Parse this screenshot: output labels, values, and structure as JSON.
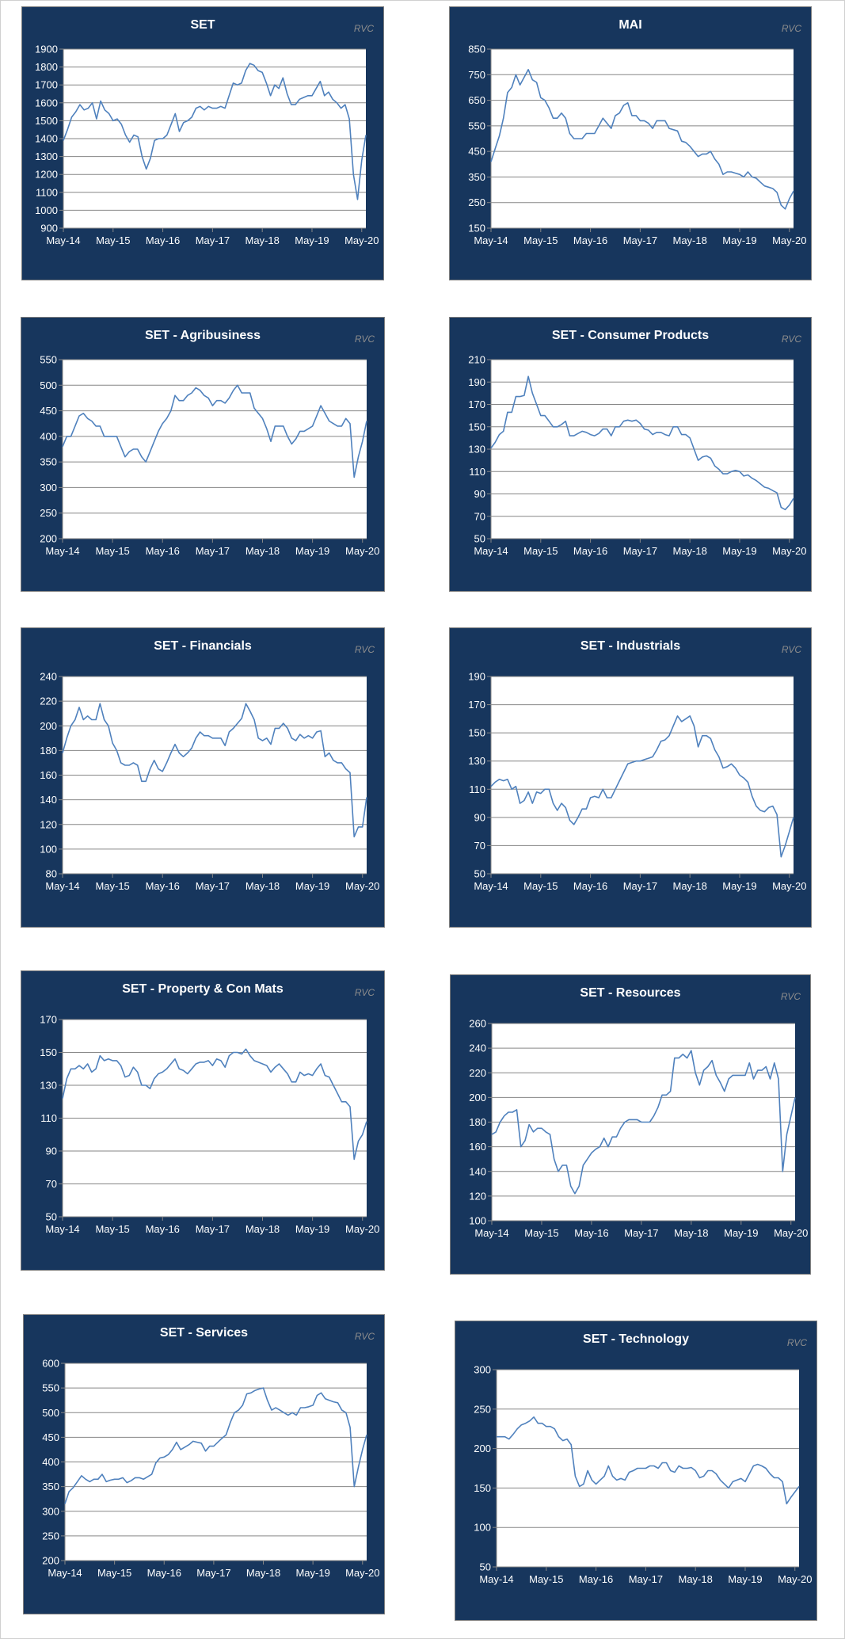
{
  "colors": {
    "panel": "#17365d",
    "line": "#4f81bd",
    "grid": "#868686",
    "brand": "#8c8c8c"
  },
  "chart_data": [
    {
      "type": "line",
      "title": "SET",
      "brand": "RVC",
      "x_start": "May-14",
      "x_step": "1 month",
      "xlim_months": [
        0,
        73
      ],
      "x_tick_labels": [
        "May-14",
        "May-15",
        "May-16",
        "May-17",
        "May-18",
        "May-19",
        "May-20"
      ],
      "ylim": [
        900,
        1900
      ],
      "yticks": [
        900,
        1000,
        1100,
        1200,
        1300,
        1400,
        1500,
        1600,
        1700,
        1800,
        1900
      ],
      "values": [
        1390,
        1450,
        1520,
        1550,
        1590,
        1560,
        1570,
        1600,
        1510,
        1610,
        1560,
        1540,
        1500,
        1510,
        1480,
        1420,
        1380,
        1420,
        1410,
        1300,
        1230,
        1290,
        1390,
        1400,
        1400,
        1420,
        1480,
        1540,
        1440,
        1490,
        1500,
        1520,
        1570,
        1580,
        1560,
        1580,
        1570,
        1570,
        1580,
        1570,
        1640,
        1710,
        1700,
        1710,
        1780,
        1820,
        1810,
        1780,
        1770,
        1710,
        1640,
        1700,
        1680,
        1740,
        1650,
        1590,
        1590,
        1620,
        1630,
        1640,
        1640,
        1680,
        1720,
        1640,
        1660,
        1620,
        1600,
        1570,
        1590,
        1510,
        1200,
        1060,
        1280,
        1420
      ]
    },
    {
      "type": "line",
      "title": "MAI",
      "brand": "RVC",
      "x_start": "May-14",
      "x_step": "1 month",
      "xlim_months": [
        0,
        73
      ],
      "x_tick_labels": [
        "May-14",
        "May-15",
        "May-16",
        "May-17",
        "May-18",
        "May-19",
        "May-20"
      ],
      "ylim": [
        150,
        850
      ],
      "yticks": [
        150,
        250,
        350,
        450,
        550,
        650,
        750,
        850
      ],
      "values": [
        410,
        460,
        510,
        580,
        680,
        700,
        750,
        710,
        740,
        770,
        730,
        720,
        660,
        650,
        620,
        580,
        580,
        600,
        580,
        520,
        500,
        500,
        500,
        520,
        520,
        520,
        550,
        580,
        560,
        540,
        590,
        600,
        630,
        640,
        590,
        590,
        570,
        570,
        560,
        540,
        570,
        570,
        570,
        540,
        535,
        530,
        490,
        485,
        470,
        450,
        430,
        440,
        440,
        450,
        420,
        400,
        360,
        370,
        370,
        365,
        360,
        350,
        370,
        350,
        345,
        330,
        315,
        310,
        305,
        290,
        240,
        225,
        265,
        295
      ]
    },
    {
      "type": "line",
      "title": "SET - Agribusiness",
      "brand": "RVC",
      "x_start": "May-14",
      "x_step": "1 month",
      "xlim_months": [
        0,
        73
      ],
      "x_tick_labels": [
        "May-14",
        "May-15",
        "May-16",
        "May-17",
        "May-18",
        "May-19",
        "May-20"
      ],
      "ylim": [
        200,
        550
      ],
      "yticks": [
        200,
        250,
        300,
        350,
        400,
        450,
        500,
        550
      ],
      "values": [
        380,
        400,
        400,
        420,
        440,
        445,
        435,
        430,
        420,
        420,
        400,
        400,
        400,
        400,
        380,
        360,
        370,
        375,
        375,
        360,
        350,
        370,
        390,
        410,
        425,
        435,
        450,
        480,
        470,
        470,
        480,
        485,
        495,
        490,
        480,
        475,
        460,
        470,
        470,
        465,
        475,
        490,
        500,
        485,
        485,
        485,
        455,
        445,
        435,
        415,
        390,
        420,
        420,
        420,
        400,
        385,
        395,
        410,
        410,
        415,
        420,
        440,
        460,
        445,
        430,
        425,
        420,
        420,
        435,
        425,
        320,
        360,
        390,
        430
      ]
    },
    {
      "type": "line",
      "title": "SET - Consumer Products",
      "brand": "RVC",
      "x_start": "May-14",
      "x_step": "1 month",
      "xlim_months": [
        0,
        73
      ],
      "x_tick_labels": [
        "May-14",
        "May-15",
        "May-16",
        "May-17",
        "May-18",
        "May-19",
        "May-20"
      ],
      "ylim": [
        50,
        210
      ],
      "yticks": [
        50,
        70,
        90,
        110,
        130,
        150,
        170,
        190,
        210
      ],
      "values": [
        131,
        136,
        143,
        146,
        163,
        163,
        177,
        177,
        178,
        195,
        180,
        170,
        160,
        160,
        155,
        150,
        150,
        152,
        155,
        142,
        142,
        144,
        146,
        145,
        143,
        142,
        144,
        148,
        148,
        142,
        150,
        150,
        155,
        156,
        155,
        156,
        153,
        148,
        147,
        143,
        145,
        145,
        143,
        142,
        150,
        150,
        143,
        143,
        140,
        130,
        120,
        123,
        124,
        122,
        115,
        112,
        108,
        108,
        110,
        111,
        110,
        106,
        107,
        104,
        102,
        99,
        96,
        95,
        93,
        91,
        78,
        76,
        80,
        86
      ]
    },
    {
      "type": "line",
      "title": "SET - Financials",
      "brand": "RVC",
      "x_start": "May-14",
      "x_step": "1 month",
      "xlim_months": [
        0,
        73
      ],
      "x_tick_labels": [
        "May-14",
        "May-15",
        "May-16",
        "May-17",
        "May-18",
        "May-19",
        "May-20"
      ],
      "ylim": [
        80,
        240
      ],
      "yticks": [
        80,
        100,
        120,
        140,
        160,
        180,
        200,
        220,
        240
      ],
      "values": [
        178,
        190,
        200,
        205,
        215,
        205,
        208,
        205,
        205,
        218,
        205,
        200,
        186,
        180,
        170,
        168,
        168,
        170,
        168,
        155,
        155,
        165,
        172,
        165,
        163,
        170,
        178,
        185,
        178,
        175,
        178,
        182,
        190,
        195,
        192,
        192,
        190,
        190,
        190,
        184,
        195,
        198,
        202,
        206,
        218,
        212,
        205,
        190,
        188,
        190,
        185,
        198,
        198,
        202,
        198,
        190,
        188,
        193,
        190,
        192,
        190,
        195,
        196,
        175,
        178,
        172,
        170,
        170,
        165,
        162,
        110,
        118,
        118,
        142
      ]
    },
    {
      "type": "line",
      "title": "SET - Industrials",
      "brand": "RVC",
      "x_start": "May-14",
      "x_step": "1 month",
      "xlim_months": [
        0,
        73
      ],
      "x_tick_labels": [
        "May-14",
        "May-15",
        "May-16",
        "May-17",
        "May-18",
        "May-19",
        "May-20"
      ],
      "ylim": [
        50,
        190
      ],
      "yticks": [
        50,
        70,
        90,
        110,
        130,
        150,
        170,
        190
      ],
      "values": [
        112,
        115,
        117,
        116,
        117,
        110,
        112,
        100,
        102,
        108,
        100,
        108,
        107,
        110,
        110,
        100,
        95,
        100,
        97,
        88,
        85,
        90,
        96,
        96,
        104,
        105,
        104,
        110,
        104,
        104,
        110,
        116,
        122,
        128,
        129,
        130,
        130,
        131,
        132,
        133,
        138,
        144,
        145,
        148,
        155,
        162,
        158,
        160,
        162,
        155,
        140,
        148,
        148,
        146,
        138,
        133,
        125,
        126,
        128,
        125,
        120,
        118,
        115,
        105,
        98,
        95,
        94,
        97,
        98,
        92,
        62,
        70,
        80,
        90
      ]
    },
    {
      "type": "line",
      "title": "SET - Property & Con Mats",
      "brand": "RVC",
      "x_start": "May-14",
      "x_step": "1 month",
      "xlim_months": [
        0,
        73
      ],
      "x_tick_labels": [
        "May-14",
        "May-15",
        "May-16",
        "May-17",
        "May-18",
        "May-19",
        "May-20"
      ],
      "ylim": [
        50,
        170
      ],
      "yticks": [
        50,
        70,
        90,
        110,
        130,
        150,
        170
      ],
      "values": [
        122,
        134,
        140,
        140,
        142,
        140,
        143,
        138,
        140,
        148,
        145,
        146,
        145,
        145,
        142,
        135,
        136,
        141,
        138,
        130,
        130,
        128,
        134,
        137,
        138,
        140,
        143,
        146,
        140,
        139,
        137,
        140,
        143,
        144,
        144,
        145,
        142,
        146,
        145,
        141,
        148,
        150,
        150,
        149,
        152,
        148,
        145,
        144,
        143,
        142,
        138,
        141,
        143,
        140,
        137,
        132,
        132,
        138,
        136,
        137,
        136,
        140,
        143,
        136,
        135,
        130,
        125,
        120,
        120,
        117,
        85,
        96,
        100,
        108
      ]
    },
    {
      "type": "line",
      "title": "SET - Resources",
      "brand": "RVC",
      "x_start": "May-14",
      "x_step": "1 month",
      "xlim_months": [
        0,
        73
      ],
      "x_tick_labels": [
        "May-14",
        "May-15",
        "May-16",
        "May-17",
        "May-18",
        "May-19",
        "May-20"
      ],
      "ylim": [
        100,
        260
      ],
      "yticks": [
        100,
        120,
        140,
        160,
        180,
        200,
        220,
        240,
        260
      ],
      "values": [
        170,
        172,
        180,
        185,
        188,
        188,
        190,
        160,
        165,
        178,
        172,
        175,
        175,
        172,
        170,
        150,
        140,
        145,
        145,
        128,
        122,
        128,
        145,
        150,
        155,
        158,
        160,
        167,
        160,
        168,
        168,
        175,
        180,
        182,
        182,
        182,
        180,
        180,
        180,
        185,
        192,
        202,
        202,
        205,
        232,
        232,
        235,
        232,
        238,
        220,
        210,
        222,
        225,
        230,
        218,
        212,
        205,
        215,
        218,
        218,
        218,
        218,
        228,
        215,
        222,
        222,
        225,
        215,
        228,
        215,
        140,
        170,
        185,
        200
      ]
    },
    {
      "type": "line",
      "title": "SET - Services",
      "brand": "RVC",
      "x_start": "May-14",
      "x_step": "1 month",
      "xlim_months": [
        0,
        73
      ],
      "x_tick_labels": [
        "May-14",
        "May-15",
        "May-16",
        "May-17",
        "May-18",
        "May-19",
        "May-20"
      ],
      "ylim": [
        200,
        600
      ],
      "yticks": [
        200,
        250,
        300,
        350,
        400,
        450,
        500,
        550,
        600
      ],
      "values": [
        315,
        340,
        348,
        360,
        372,
        365,
        360,
        365,
        365,
        375,
        360,
        363,
        365,
        365,
        368,
        358,
        362,
        368,
        368,
        365,
        370,
        375,
        398,
        408,
        410,
        415,
        425,
        440,
        425,
        430,
        435,
        442,
        440,
        438,
        422,
        432,
        432,
        440,
        448,
        455,
        480,
        500,
        505,
        515,
        538,
        540,
        545,
        548,
        550,
        525,
        505,
        510,
        505,
        500,
        495,
        500,
        495,
        510,
        510,
        512,
        515,
        535,
        540,
        528,
        525,
        522,
        520,
        505,
        500,
        470,
        350,
        390,
        425,
        455
      ]
    },
    {
      "type": "line",
      "title": "SET - Technology",
      "brand": "RVC",
      "x_start": "May-14",
      "x_step": "1 month",
      "xlim_months": [
        0,
        73
      ],
      "x_tick_labels": [
        "May-14",
        "May-15",
        "May-16",
        "May-17",
        "May-18",
        "May-19",
        "May-20"
      ],
      "ylim": [
        50,
        300
      ],
      "yticks": [
        50,
        100,
        150,
        200,
        250,
        300
      ],
      "values": [
        215,
        215,
        215,
        212,
        218,
        225,
        230,
        232,
        235,
        240,
        232,
        232,
        228,
        228,
        225,
        215,
        210,
        212,
        205,
        165,
        152,
        155,
        172,
        160,
        155,
        160,
        165,
        178,
        165,
        160,
        162,
        160,
        170,
        172,
        175,
        175,
        175,
        178,
        178,
        175,
        182,
        182,
        172,
        170,
        178,
        175,
        175,
        176,
        172,
        163,
        165,
        172,
        172,
        168,
        160,
        155,
        150,
        158,
        160,
        162,
        158,
        168,
        178,
        180,
        178,
        175,
        168,
        163,
        163,
        158,
        130,
        138,
        145,
        152
      ]
    }
  ]
}
